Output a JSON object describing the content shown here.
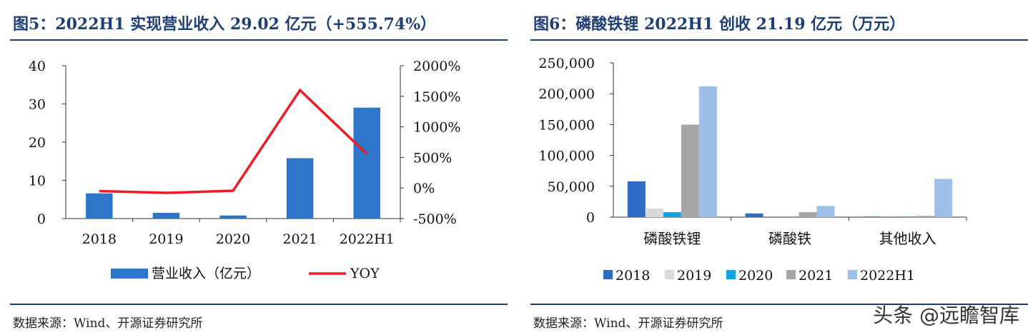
{
  "left": {
    "title": "图5：2022H1 实现营业收入 29.02 亿元（+555.74%）",
    "source": "数据来源：Wind、开源证券研究所"
  },
  "right": {
    "title": "图6：磷酸铁锂 2022H1 创收 21.19 亿元（万元）",
    "source": "数据来源：Wind、开源证券研究所"
  },
  "watermark": "头条 @远瞻智库",
  "chart_data": [
    {
      "type": "bar",
      "categories": [
        "2018",
        "2019",
        "2020",
        "2021",
        "2022H1"
      ],
      "series": [
        {
          "name": "营业收入（亿元）",
          "axis": "left",
          "color": "#2e75c9",
          "values": [
            6.6,
            1.5,
            0.8,
            15.8,
            29.02
          ]
        },
        {
          "name": "YOY",
          "axis": "right",
          "type": "line",
          "color": "#ee1c25",
          "values": [
            -50,
            -80,
            -45,
            1600,
            556
          ]
        }
      ],
      "ylim": [
        0,
        40
      ],
      "yticks": [
        "0",
        "10",
        "20",
        "30",
        "40"
      ],
      "y2lim": [
        -500,
        2000
      ],
      "y2ticks": [
        "-500%",
        "0%",
        "500%",
        "1000%",
        "1500%",
        "2000%"
      ],
      "legend": "bottom"
    },
    {
      "type": "bar",
      "categories": [
        "磷酸铁锂",
        "磷酸铁",
        "其他收入"
      ],
      "series": [
        {
          "name": "2018",
          "color": "#2e6bc6",
          "values": [
            58000,
            6000,
            1000
          ]
        },
        {
          "name": "2019",
          "color": "#d9d9d9",
          "values": [
            14000,
            0,
            0
          ]
        },
        {
          "name": "2020",
          "color": "#14a3e0",
          "values": [
            8000,
            0,
            1000
          ]
        },
        {
          "name": "2021",
          "color": "#a6a6a6",
          "values": [
            150000,
            8000,
            2000
          ]
        },
        {
          "name": "2022H1",
          "color": "#9dbfe8",
          "values": [
            212000,
            18000,
            62000
          ]
        }
      ],
      "ylim": [
        0,
        250000
      ],
      "yticks": [
        "0",
        "50,000",
        "100,000",
        "150,000",
        "200,000",
        "250,000"
      ],
      "legend": "bottom"
    }
  ]
}
